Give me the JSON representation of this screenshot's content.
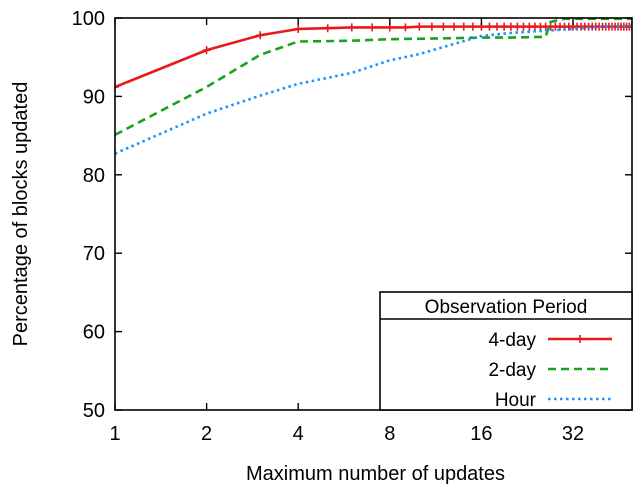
{
  "chart_data": {
    "type": "line",
    "xlabel": "Maximum number of updates",
    "ylabel": "Percentage of blocks updated",
    "x_scale": "log2",
    "xlim": [
      1,
      50
    ],
    "ylim": [
      50,
      100
    ],
    "x_ticks": [
      1,
      2,
      4,
      8,
      16,
      32
    ],
    "y_ticks": [
      50,
      60,
      70,
      80,
      90,
      100
    ],
    "legend": {
      "title": "Observation Period",
      "placement": "bottom-right"
    },
    "series": [
      {
        "name": "4-day",
        "color": "#e8191c",
        "style": "solid-with-plus-markers",
        "points": [
          [
            1,
            91.2
          ],
          [
            2,
            95.9
          ],
          [
            3,
            97.8
          ],
          [
            4,
            98.6
          ],
          [
            5,
            98.7
          ],
          [
            6,
            98.8
          ],
          [
            7,
            98.8
          ],
          [
            8,
            98.8
          ],
          [
            9,
            98.8
          ],
          [
            10,
            98.9
          ],
          [
            11,
            98.9
          ],
          [
            12,
            98.9
          ],
          [
            13,
            98.9
          ],
          [
            14,
            98.9
          ],
          [
            15,
            98.9
          ],
          [
            16,
            98.9
          ],
          [
            17,
            98.9
          ],
          [
            18,
            98.9
          ],
          [
            19,
            98.9
          ],
          [
            20,
            98.9
          ],
          [
            21,
            98.9
          ],
          [
            22,
            98.9
          ],
          [
            23,
            98.9
          ],
          [
            24,
            98.9
          ],
          [
            25,
            98.9
          ],
          [
            26,
            98.9
          ],
          [
            27,
            98.9
          ],
          [
            28,
            98.9
          ],
          [
            29,
            98.9
          ],
          [
            30,
            98.9
          ],
          [
            31,
            98.9
          ],
          [
            32,
            98.9
          ],
          [
            33,
            98.9
          ],
          [
            34,
            98.9
          ],
          [
            35,
            98.9
          ],
          [
            36,
            98.9
          ],
          [
            37,
            98.9
          ],
          [
            38,
            98.9
          ],
          [
            39,
            98.9
          ],
          [
            40,
            98.9
          ],
          [
            41,
            98.9
          ],
          [
            42,
            98.9
          ],
          [
            43,
            98.9
          ],
          [
            44,
            98.9
          ],
          [
            45,
            98.9
          ],
          [
            46,
            98.9
          ],
          [
            47,
            98.9
          ],
          [
            48,
            98.9
          ],
          [
            49,
            98.9
          ],
          [
            50,
            98.9
          ]
        ]
      },
      {
        "name": "2-day",
        "color": "#1aa31a",
        "style": "dashed",
        "points": [
          [
            1,
            85.1
          ],
          [
            2,
            91.2
          ],
          [
            3,
            95.3
          ],
          [
            4,
            97.0
          ],
          [
            6,
            97.1
          ],
          [
            8,
            97.3
          ],
          [
            12,
            97.4
          ],
          [
            16,
            97.5
          ],
          [
            20,
            97.5
          ],
          [
            26,
            97.6
          ],
          [
            27,
            99.5
          ],
          [
            30,
            99.9
          ],
          [
            40,
            99.9
          ],
          [
            50,
            99.9
          ]
        ]
      },
      {
        "name": "Hour",
        "color": "#1e90ff",
        "style": "dotted",
        "points": [
          [
            1,
            82.7
          ],
          [
            2,
            87.8
          ],
          [
            3,
            90.1
          ],
          [
            4,
            91.6
          ],
          [
            6,
            93.0
          ],
          [
            8,
            94.6
          ],
          [
            10,
            95.4
          ],
          [
            12,
            96.3
          ],
          [
            16,
            97.7
          ],
          [
            20,
            98.1
          ],
          [
            24,
            98.3
          ],
          [
            32,
            98.6
          ],
          [
            40,
            98.9
          ],
          [
            50,
            99.0
          ]
        ]
      }
    ]
  }
}
